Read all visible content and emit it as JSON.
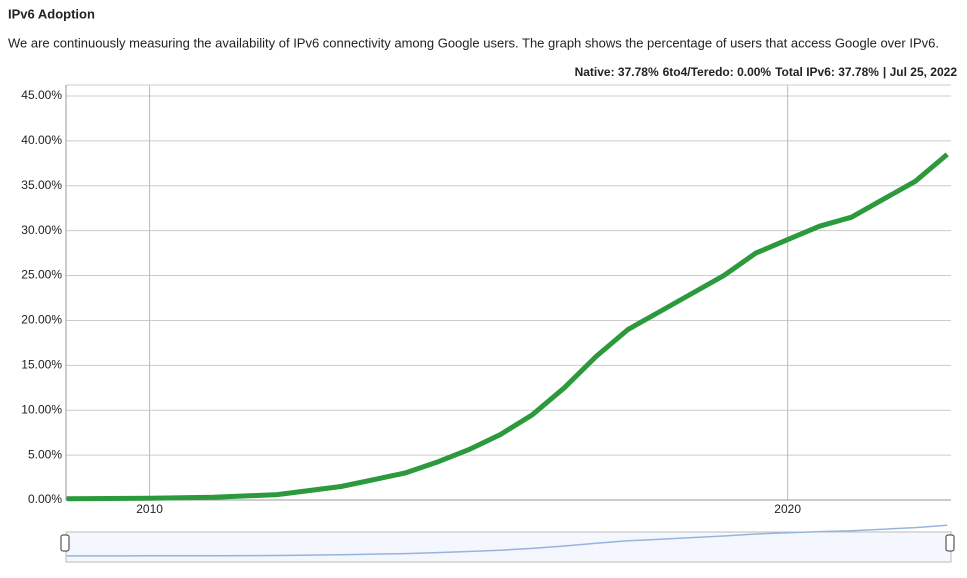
{
  "chart_data": {
    "type": "line",
    "title": "IPv6 Adoption",
    "subtitle": "We are continuously measuring the availability of IPv6 connectivity among Google users. The graph shows the percentage of users that access Google over IPv6.",
    "legend": [
      {
        "label": "Native: 37.78%",
        "color": "#2c9a3c"
      },
      {
        "label": "6to4/Teredo: 0.00%",
        "color": "#e07b7b"
      },
      {
        "label": "Total IPv6: 37.78%",
        "color": "#98b4de"
      },
      {
        "label": "| Jul 25, 2022",
        "color": "#000000"
      }
    ],
    "x": [
      2008.7,
      2010,
      2011,
      2012,
      2013,
      2014,
      2014.5,
      2015,
      2015.5,
      2016,
      2016.5,
      2017,
      2017.5,
      2018,
      2018.5,
      2019,
      2019.5,
      2020,
      2020.5,
      2021,
      2021.5,
      2022,
      2022.5
    ],
    "series": [
      {
        "name": "Native",
        "color": "#2c9a3c",
        "values": [
          0.14,
          0.2,
          0.3,
          0.6,
          1.5,
          3.0,
          4.2,
          5.6,
          7.3,
          9.5,
          12.5,
          16,
          19,
          21,
          23,
          25,
          27.5,
          29,
          30.5,
          31.5,
          33.5,
          35.5,
          38.5
        ]
      }
    ],
    "navigator_color": "#98b4de",
    "xlim": [
      2008.69,
      2022.56
    ],
    "xticks": [
      2010,
      2020
    ],
    "ylim": [
      0,
      45
    ],
    "yticks": [
      {
        "value": 0,
        "label": "0.00%"
      },
      {
        "value": 5,
        "label": "5.00%"
      },
      {
        "value": 10,
        "label": "10.00%"
      },
      {
        "value": 15,
        "label": "15.00%"
      },
      {
        "value": 20,
        "label": "20.00%"
      },
      {
        "value": 25,
        "label": "25.00%"
      },
      {
        "value": 30,
        "label": "30.00%"
      },
      {
        "value": 35,
        "label": "35.00%"
      },
      {
        "value": 40,
        "label": "40.00%"
      },
      {
        "value": 45,
        "label": "45.00%"
      }
    ],
    "grid": true
  }
}
